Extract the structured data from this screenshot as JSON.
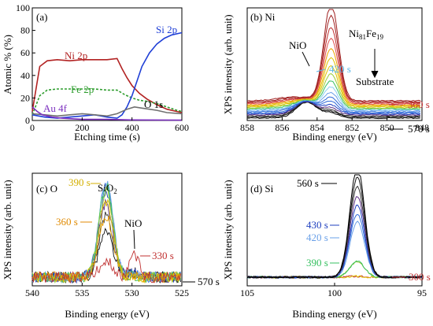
{
  "chart_data": [
    {
      "panel_label": "(a)",
      "type": "line",
      "xlabel": "Etching time (s)",
      "ylabel": "Atomic % (%)",
      "xlim": [
        0,
        600
      ],
      "ylim": [
        0,
        100
      ],
      "xticks": [
        "0",
        "200",
        "400",
        "600"
      ],
      "yticks": [
        "0",
        "20",
        "40",
        "60",
        "80",
        "100"
      ],
      "series": [
        {
          "name": "Ni 2p",
          "color": "#b22222",
          "style": "solid",
          "x": [
            0,
            30,
            60,
            100,
            150,
            200,
            250,
            300,
            340,
            360,
            380,
            400,
            430,
            460,
            500,
            540,
            580,
            600
          ],
          "y": [
            8,
            48,
            53,
            54,
            53,
            54,
            54,
            54,
            55,
            46,
            38,
            31,
            24,
            19,
            14,
            10,
            8,
            7
          ]
        },
        {
          "name": "Fe 2p",
          "color": "#2e9d2e",
          "style": "dashed",
          "x": [
            0,
            30,
            60,
            100,
            150,
            200,
            250,
            300,
            340,
            370,
            400,
            430,
            460,
            500,
            540,
            580,
            600
          ],
          "y": [
            5,
            22,
            27,
            28,
            28,
            28,
            28,
            27,
            27,
            23,
            20,
            18,
            17,
            15,
            12,
            9,
            8
          ]
        },
        {
          "name": "Si 2p",
          "color": "#1f3fd6",
          "style": "solid",
          "x": [
            0,
            50,
            100,
            150,
            200,
            250,
            300,
            340,
            360,
            380,
            400,
            420,
            440,
            470,
            500,
            530,
            560,
            600
          ],
          "y": [
            5,
            3,
            2,
            3,
            4,
            5,
            3,
            2,
            5,
            12,
            22,
            35,
            48,
            60,
            68,
            73,
            76,
            78
          ]
        },
        {
          "name": "O 1s",
          "color": "#707070",
          "style": "solid",
          "x": [
            0,
            50,
            100,
            150,
            200,
            250,
            300,
            340,
            380,
            410,
            440,
            470,
            500,
            540,
            600
          ],
          "y": [
            6,
            5,
            4,
            5,
            6,
            5,
            4,
            6,
            10,
            12,
            11,
            10,
            9,
            7,
            6
          ]
        },
        {
          "name": "Au 4f",
          "color": "#7b2fbf",
          "style": "solid",
          "x": [
            0,
            20,
            40,
            80,
            120,
            200,
            300,
            400,
            600
          ],
          "y": [
            12,
            8,
            5,
            3,
            2,
            1,
            1,
            0.5,
            0.3
          ]
        }
      ]
    },
    {
      "panel_label": "(b) Ni",
      "type": "line",
      "xlabel": "Binding energy (eV)",
      "ylabel": "XPS intensity (arb. unit)",
      "xlim": [
        858,
        848
      ],
      "xticks": [
        "858",
        "856",
        "854",
        "852",
        "850",
        "848"
      ],
      "annotations": {
        "peak": "NiO",
        "sample": "Ni",
        "sample_sub1": "81",
        "sample2": "Fe",
        "sample_sub2": "19",
        "arrow_to": "Substrate",
        "t_hi": "420 s",
        "t_lo1": "300 s",
        "t_lo2": "570 s"
      },
      "colors": [
        "#111111",
        "#303030",
        "#5a2d82",
        "#1e3fbf",
        "#2e6ad8",
        "#6aa0e8",
        "#8ad0f0",
        "#36c060",
        "#9acd32",
        "#e0c000",
        "#f0a000",
        "#e05050",
        "#c03030",
        "#a02020"
      ]
    },
    {
      "panel_label": "(c) O",
      "type": "line",
      "xlabel": "Binding energy (eV)",
      "ylabel": "XPS intensity (arb. unit)",
      "xlim": [
        540,
        525
      ],
      "xticks": [
        "540",
        "535",
        "530",
        "525"
      ],
      "annotations": {
        "sio2": "SiO",
        "sio2_sub": "2",
        "nio": "NiO",
        "t_390": "390 s",
        "t_360": "360 s",
        "t_330": "330 s",
        "t_570": "570 s"
      }
    },
    {
      "panel_label": "(d) Si",
      "type": "line",
      "xlabel": "Binding energy (eV)",
      "ylabel": "XPS intensity (arb. unit)",
      "xlim": [
        105,
        95
      ],
      "xticks": [
        "105",
        "100",
        "95"
      ],
      "annotations": {
        "t_560": "560 s",
        "t_430": "430 s",
        "t_420": "420 s",
        "t_390": "390 s",
        "t_300": "300 s"
      }
    }
  ]
}
